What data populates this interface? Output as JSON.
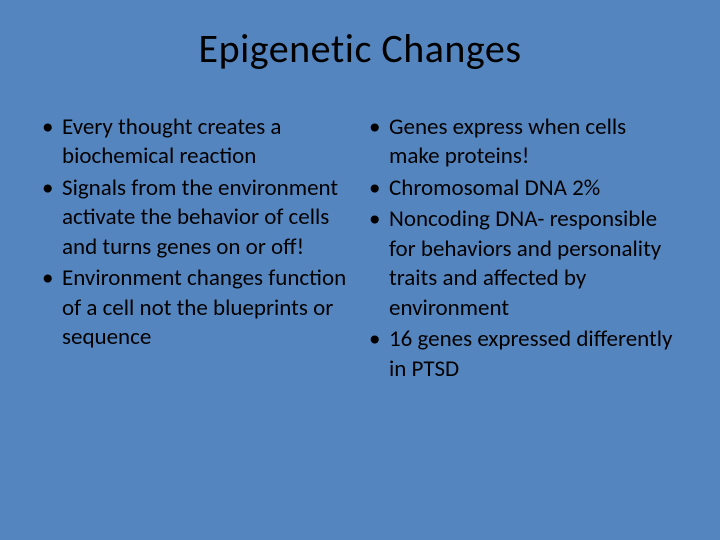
{
  "slide": {
    "title": "Epigenetic Changes",
    "background_color": "#5585bf",
    "text_color": "#000000",
    "title_fontsize": 40,
    "body_fontsize": 23,
    "columns": [
      {
        "bullets": [
          "Every thought creates a biochemical reaction",
          "Signals from the environment activate the behavior of cells and turns genes on or off!",
          "Environment changes function of a cell not the blueprints or sequence"
        ]
      },
      {
        "bullets": [
          "Genes express when cells make proteins!",
          "Chromosomal DNA 2%",
          "Noncoding DNA- responsible for behaviors and personality traits and affected by environment",
          "16 genes expressed differently in PTSD"
        ]
      }
    ]
  }
}
